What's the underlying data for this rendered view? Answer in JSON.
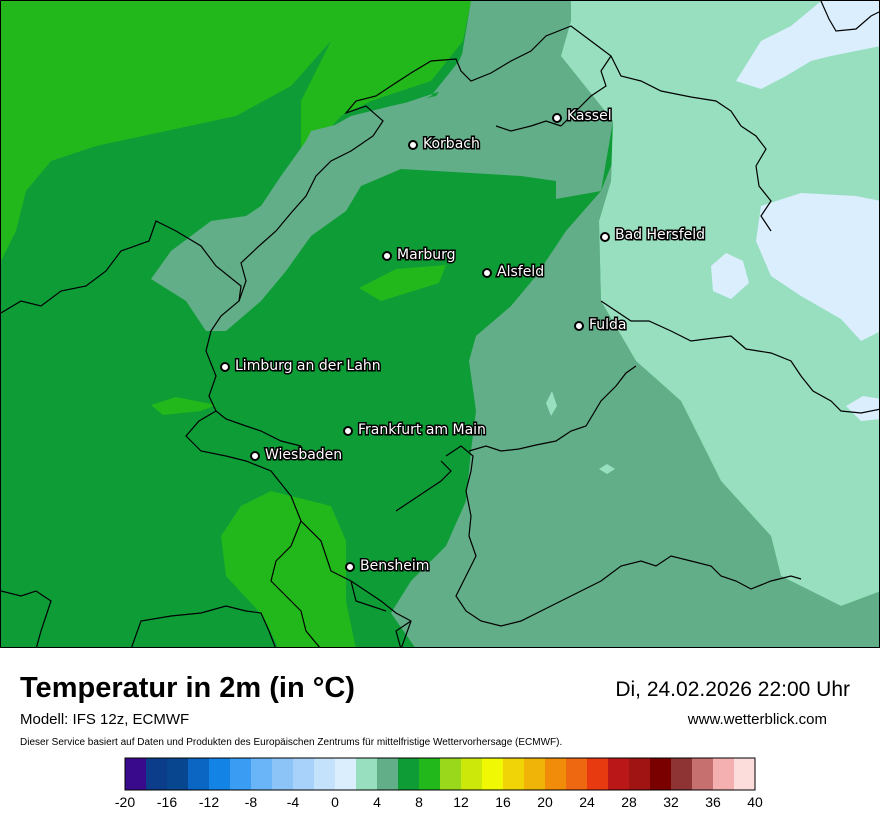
{
  "title": "Temperatur in 2m (in °C)",
  "datetime": "Di, 24.02.2026 22:00 Uhr",
  "model": "Modell: IFS 12z, ECMWF",
  "website": "www.wetterblick.com",
  "disclaimer": "Dieser Service basiert auf Daten und Produkten des Europäischen Zentrums für mittelfristige Wettervorhersage (ECMWF).",
  "cities": [
    {
      "name": "Kassel"
    },
    {
      "name": "Korbach"
    },
    {
      "name": "Bad Hersfeld"
    },
    {
      "name": "Marburg"
    },
    {
      "name": "Alsfeld"
    },
    {
      "name": "Fulda"
    },
    {
      "name": "Limburg an der Lahn"
    },
    {
      "name": "Frankfurt am Main"
    },
    {
      "name": "Wiesbaden"
    },
    {
      "name": "Bensheim"
    }
  ],
  "colorbar": {
    "min": -20,
    "max": 40,
    "step": 2,
    "tick_labels": [
      "-20",
      "-16",
      "-12",
      "-8",
      "-4",
      "0",
      "4",
      "8",
      "12",
      "16",
      "20",
      "24",
      "28",
      "32",
      "36",
      "40"
    ],
    "colors": [
      "#3a0a8c",
      "#0c3d8a",
      "#08468f",
      "#0a66c2",
      "#1483e6",
      "#3a9cf2",
      "#6ab5f8",
      "#8cc4f8",
      "#a8d2fa",
      "#c4e2fc",
      "#daeefe",
      "#98dfc0",
      "#62ae88",
      "#0e9c36",
      "#22b81c",
      "#9ad81c",
      "#cce80a",
      "#f0f804",
      "#f0d408",
      "#f0b408",
      "#f08c0a",
      "#ee6812",
      "#e83a10",
      "#ba1818",
      "#a01414",
      "#7a0000",
      "#8e3434",
      "#c67070",
      "#f4b0b0",
      "#fddcdc"
    ]
  }
}
